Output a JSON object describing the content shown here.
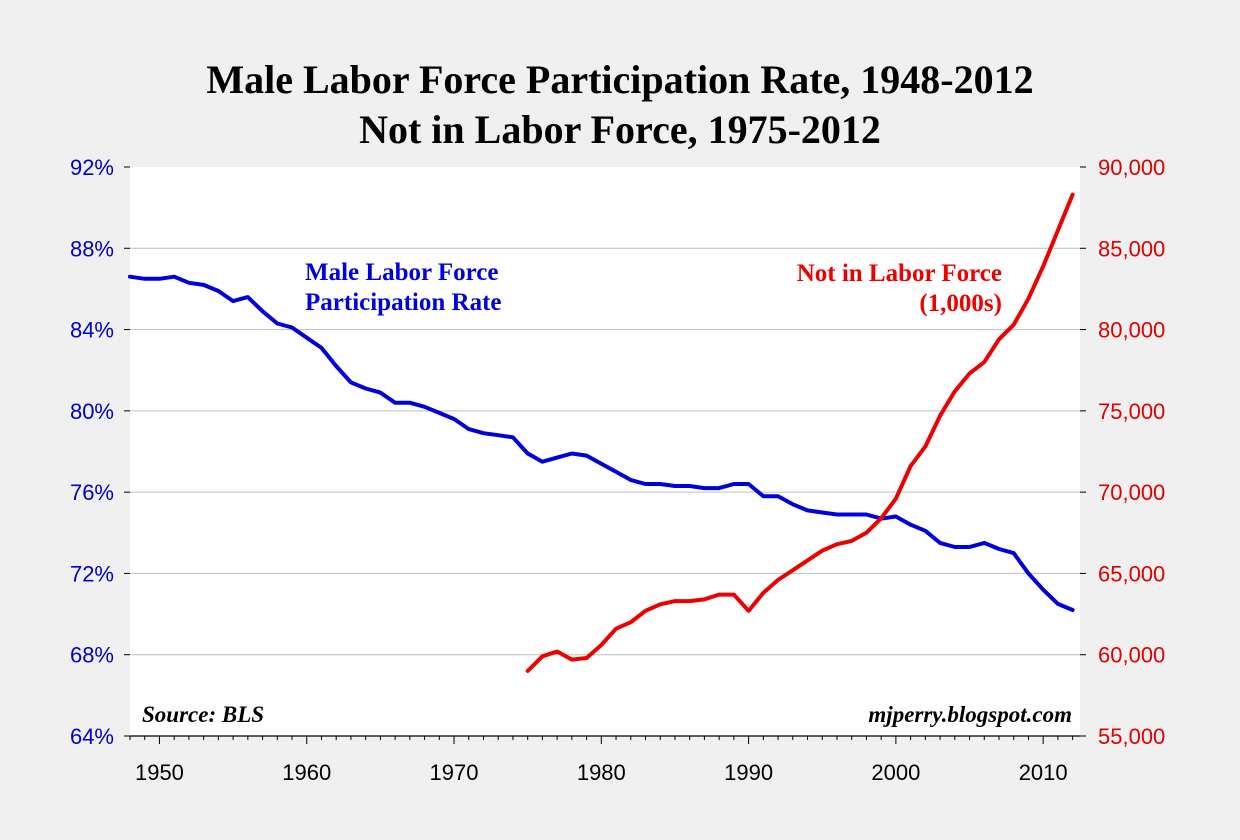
{
  "chart_data": {
    "type": "line",
    "title": "Male Labor Force Participation Rate, 1948-2012",
    "subtitle": "Not in Labor Force, 1975-2012",
    "source": "Source: BLS",
    "credit": "mjperry.blogspot.com",
    "xlim": [
      1948,
      2012.5
    ],
    "x_ticks": [
      "1950",
      "1960",
      "1970",
      "1980",
      "1990",
      "2000",
      "2010"
    ],
    "y_left": {
      "ylim": [
        64,
        92
      ],
      "ticks": [
        "64%",
        "68%",
        "72%",
        "76%",
        "80%",
        "84%",
        "88%",
        "92%"
      ]
    },
    "y_right": {
      "ylim": [
        55000,
        90000
      ],
      "ticks": [
        "55,000",
        "60,000",
        "65,000",
        "70,000",
        "75,000",
        "80,000",
        "85,000",
        "90,000"
      ]
    },
    "grid": true,
    "colors": {
      "participation": "#0000dd",
      "not_in_lf": "#ee0000"
    },
    "series": [
      {
        "label_lines": [
          "Male Labor Force",
          "Participation Rate"
        ],
        "axis": "left",
        "unit": "%",
        "x": [
          1948,
          1949,
          1950,
          1951,
          1952,
          1953,
          1954,
          1955,
          1956,
          1957,
          1958,
          1959,
          1960,
          1961,
          1962,
          1963,
          1964,
          1965,
          1966,
          1967,
          1968,
          1969,
          1970,
          1971,
          1972,
          1973,
          1974,
          1975,
          1976,
          1977,
          1978,
          1979,
          1980,
          1981,
          1982,
          1983,
          1984,
          1985,
          1986,
          1987,
          1988,
          1989,
          1990,
          1991,
          1992,
          1993,
          1994,
          1995,
          1996,
          1997,
          1998,
          1999,
          2000,
          2001,
          2002,
          2003,
          2004,
          2005,
          2006,
          2007,
          2008,
          2009,
          2010,
          2011,
          2012
        ],
        "values": [
          86.6,
          86.5,
          86.5,
          86.6,
          86.3,
          86.2,
          85.9,
          85.4,
          85.6,
          84.9,
          84.3,
          84.1,
          83.6,
          83.1,
          82.2,
          81.4,
          81.1,
          80.9,
          80.4,
          80.4,
          80.2,
          79.9,
          79.6,
          79.1,
          78.9,
          78.8,
          78.7,
          77.9,
          77.5,
          77.7,
          77.9,
          77.8,
          77.4,
          77.0,
          76.6,
          76.4,
          76.4,
          76.3,
          76.3,
          76.2,
          76.2,
          76.4,
          76.4,
          75.8,
          75.8,
          75.4,
          75.1,
          75.0,
          74.9,
          74.9,
          74.9,
          74.7,
          74.8,
          74.4,
          74.1,
          73.5,
          73.3,
          73.3,
          73.5,
          73.2,
          73.0,
          72.0,
          71.2,
          70.5,
          70.2
        ]
      },
      {
        "label_lines": [
          "Not in Labor Force",
          "(1,000s)"
        ],
        "axis": "right",
        "unit": "thousands",
        "x": [
          1975,
          1976,
          1977,
          1978,
          1979,
          1980,
          1981,
          1982,
          1983,
          1984,
          1985,
          1986,
          1987,
          1988,
          1989,
          1990,
          1991,
          1992,
          1993,
          1994,
          1995,
          1996,
          1997,
          1998,
          1999,
          2000,
          2001,
          2002,
          2003,
          2004,
          2005,
          2006,
          2007,
          2008,
          2009,
          2010,
          2011,
          2012
        ],
        "values": [
          59000,
          59900,
          60200,
          59700,
          59800,
          60600,
          61600,
          62000,
          62700,
          63100,
          63300,
          63300,
          63400,
          63700,
          63700,
          62700,
          63800,
          64600,
          65200,
          65800,
          66400,
          66800,
          67000,
          67500,
          68400,
          69600,
          71600,
          72800,
          74700,
          76200,
          77300,
          78000,
          79400,
          80300,
          81900,
          83900,
          86100,
          88300
        ]
      }
    ]
  }
}
